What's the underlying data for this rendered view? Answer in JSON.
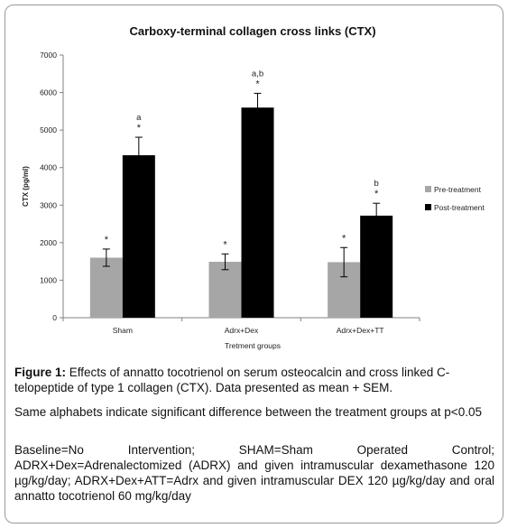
{
  "chart_data": {
    "type": "bar",
    "title": "Carboxy-terminal collagen cross links (CTX)",
    "xlabel": "Tretment groups",
    "ylabel": "CTX (pg/ml)",
    "ylim": [
      0,
      7000
    ],
    "yticks": [
      "0",
      "1000",
      "2000",
      "3000",
      "4000",
      "5000",
      "6000",
      "7000"
    ],
    "grid": false,
    "legend_position": "right",
    "categories": [
      "Sham",
      "Adrx+Dex",
      "Adrx+Dex+TT"
    ],
    "series": [
      {
        "name": "Pre-treatment",
        "color": "#a6a6a6",
        "values": [
          1600,
          1490,
          1480
        ],
        "errors": [
          230,
          210,
          390
        ],
        "labels": [
          [
            "*"
          ],
          [
            "*"
          ],
          [
            "*"
          ]
        ]
      },
      {
        "name": "Post-treatment",
        "color": "#000000",
        "values": [
          4330,
          5600,
          2720
        ],
        "errors": [
          480,
          380,
          330
        ],
        "labels": [
          [
            "a",
            "*"
          ],
          [
            "a,b",
            "*"
          ],
          [
            "b",
            "*"
          ]
        ]
      }
    ]
  },
  "caption": {
    "figure_label": "Figure 1:",
    "figure_text": " Effects of annatto tocotrienol on serum osteocalcin and cross linked C-telopeptide of type 1 collagen (CTX). Data presented as mean + SEM.",
    "note": "Same alphabets indicate significant difference between the treatment groups at p<0.05",
    "legend_text": "Baseline=No Intervention; SHAM=Sham Operated Control; ADRX+Dex=Adrenalectomized (ADRX) and given intramuscular dexamethasone 120 µg/kg/day; ADRX+Dex+ATT=Adrx and given intramuscular DEX 120 µg/kg/day and oral annatto tocotrienol 60 mg/kg/day"
  }
}
